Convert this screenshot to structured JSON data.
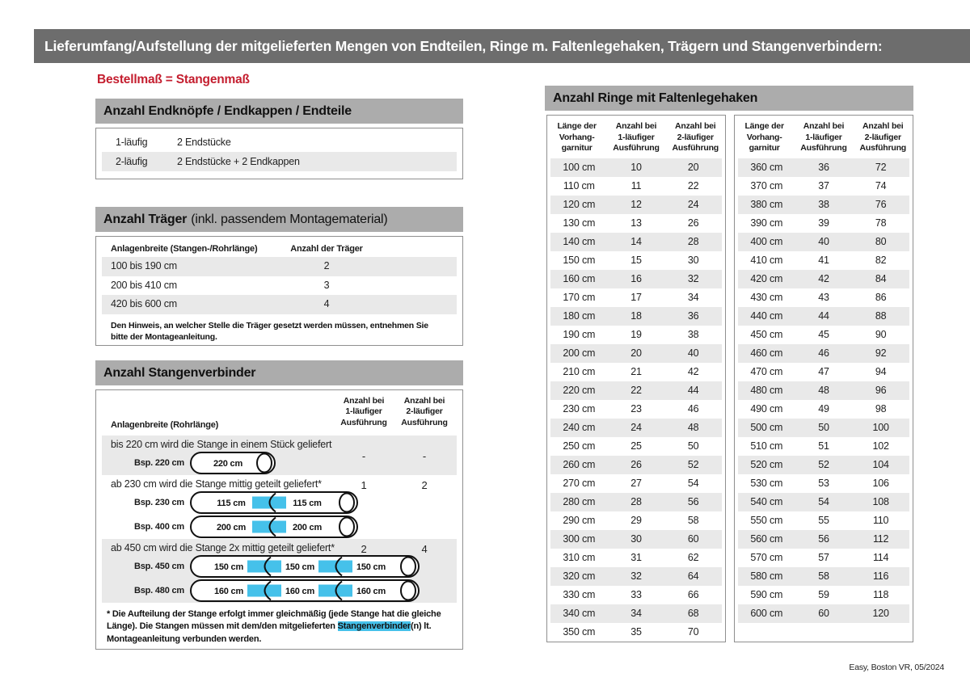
{
  "banner": {
    "title": "Lieferumfang/Aufstellung der mitgelieferten Mengen von Endteilen, Ringe m. Faltenlegehaken, Trägern und Stangenverbindern:"
  },
  "colors": {
    "banner_bg": "#6d6d6d",
    "section_bar_bg": "#acacac",
    "row_alt_bg": "#e9e9e9",
    "accent_red": "#c41e2f",
    "connector_cyan": "#45c1ea"
  },
  "left": {
    "subtitle": "Bestellmaß = Stangenmaß",
    "endteile": {
      "title": "Anzahl Endknöpfe / Endkappen / Endteile",
      "rows": [
        {
          "label": "1-läufig",
          "value": "2 Endstücke"
        },
        {
          "label": "2-läufig",
          "value": "2 Endstücke + 2 Endkappen"
        }
      ]
    },
    "traeger": {
      "title_bold": "Anzahl Träger",
      "title_rest": "(inkl. passendem Montagematerial)",
      "col1": "Anlagenbreite (Stangen-/Rohrlänge)",
      "col2": "Anzahl der Träger",
      "rows": [
        {
          "range": "100 bis 190 cm",
          "count": "2"
        },
        {
          "range": "200 bis 410 cm",
          "count": "3"
        },
        {
          "range": "420 bis 600 cm",
          "count": "4"
        }
      ],
      "note": "Den Hinweis, an welcher Stelle die Träger gesetzt werden müssen, entnehmen Sie bitte der Montageanleitung."
    },
    "verbinder": {
      "title": "Anzahl Stangenverbinder",
      "col1": "Anlagenbreite (Rohrlänge)",
      "col2": "Anzahl bei\n1-läufiger\nAusführung",
      "col3": "Anzahl bei\n2-läufiger\nAusführung",
      "sections": [
        {
          "text": "bis 220 cm wird die Stange in einem Stück geliefert",
          "v1": "-",
          "v2": "-",
          "examples": [
            {
              "label": "Bsp. 220 cm",
              "segments": [
                "220 cm"
              ]
            }
          ]
        },
        {
          "text": "ab 230 cm wird die Stange mittig geteilt geliefert*",
          "v1": "1",
          "v2": "2",
          "examples": [
            {
              "label": "Bsp. 230 cm",
              "segments": [
                "115 cm",
                "115 cm"
              ]
            },
            {
              "label": "Bsp. 400 cm",
              "segments": [
                "200 cm",
                "200 cm"
              ]
            }
          ]
        },
        {
          "text": "ab 450 cm wird die Stange 2x mittig geteilt geliefert*",
          "v1": "2",
          "v2": "4",
          "examples": [
            {
              "label": "Bsp. 450 cm",
              "segments": [
                "150 cm",
                "150 cm",
                "150 cm"
              ]
            },
            {
              "label": "Bsp. 480 cm",
              "segments": [
                "160 cm",
                "160 cm",
                "160 cm"
              ]
            }
          ]
        }
      ],
      "footnote_pre": "* Die Aufteilung der Stange erfolgt immer gleichmäßig (jede Stange hat die gleiche Länge). Die Stangen müssen mit dem/den mitgelieferten ",
      "footnote_mark": "Stangenverbinder",
      "footnote_post": "(n) lt. Montageanleitung verbunden werden."
    }
  },
  "right": {
    "title": "Anzahl Ringe mit Faltenlegehaken",
    "headers": [
      "Länge der\nVorhang-\ngarnitur",
      "Anzahl bei\n1-läufiger\nAusführung",
      "Anzahl bei\n2-läufiger\nAusführung"
    ],
    "table1": [
      [
        "100 cm",
        "10",
        "20"
      ],
      [
        "110 cm",
        "11",
        "22"
      ],
      [
        "120 cm",
        "12",
        "24"
      ],
      [
        "130 cm",
        "13",
        "26"
      ],
      [
        "140 cm",
        "14",
        "28"
      ],
      [
        "150 cm",
        "15",
        "30"
      ],
      [
        "160 cm",
        "16",
        "32"
      ],
      [
        "170 cm",
        "17",
        "34"
      ],
      [
        "180 cm",
        "18",
        "36"
      ],
      [
        "190 cm",
        "19",
        "38"
      ],
      [
        "200 cm",
        "20",
        "40"
      ],
      [
        "210 cm",
        "21",
        "42"
      ],
      [
        "220 cm",
        "22",
        "44"
      ],
      [
        "230 cm",
        "23",
        "46"
      ],
      [
        "240 cm",
        "24",
        "48"
      ],
      [
        "250 cm",
        "25",
        "50"
      ],
      [
        "260 cm",
        "26",
        "52"
      ],
      [
        "270 cm",
        "27",
        "54"
      ],
      [
        "280 cm",
        "28",
        "56"
      ],
      [
        "290 cm",
        "29",
        "58"
      ],
      [
        "300 cm",
        "30",
        "60"
      ],
      [
        "310 cm",
        "31",
        "62"
      ],
      [
        "320 cm",
        "32",
        "64"
      ],
      [
        "330 cm",
        "33",
        "66"
      ],
      [
        "340 cm",
        "34",
        "68"
      ],
      [
        "350 cm",
        "35",
        "70"
      ]
    ],
    "table2": [
      [
        "360 cm",
        "36",
        "72"
      ],
      [
        "370 cm",
        "37",
        "74"
      ],
      [
        "380 cm",
        "38",
        "76"
      ],
      [
        "390 cm",
        "39",
        "78"
      ],
      [
        "400 cm",
        "40",
        "80"
      ],
      [
        "410 cm",
        "41",
        "82"
      ],
      [
        "420 cm",
        "42",
        "84"
      ],
      [
        "430 cm",
        "43",
        "86"
      ],
      [
        "440 cm",
        "44",
        "88"
      ],
      [
        "450 cm",
        "45",
        "90"
      ],
      [
        "460 cm",
        "46",
        "92"
      ],
      [
        "470 cm",
        "47",
        "94"
      ],
      [
        "480 cm",
        "48",
        "96"
      ],
      [
        "490 cm",
        "49",
        "98"
      ],
      [
        "500 cm",
        "50",
        "100"
      ],
      [
        "510 cm",
        "51",
        "102"
      ],
      [
        "520 cm",
        "52",
        "104"
      ],
      [
        "530 cm",
        "53",
        "106"
      ],
      [
        "540 cm",
        "54",
        "108"
      ],
      [
        "550 cm",
        "55",
        "110"
      ],
      [
        "560 cm",
        "56",
        "112"
      ],
      [
        "570 cm",
        "57",
        "114"
      ],
      [
        "580 cm",
        "58",
        "116"
      ],
      [
        "590 cm",
        "59",
        "118"
      ],
      [
        "600 cm",
        "60",
        "120"
      ]
    ]
  },
  "footer": {
    "text": "Easy, Boston VR, 05/2024"
  }
}
